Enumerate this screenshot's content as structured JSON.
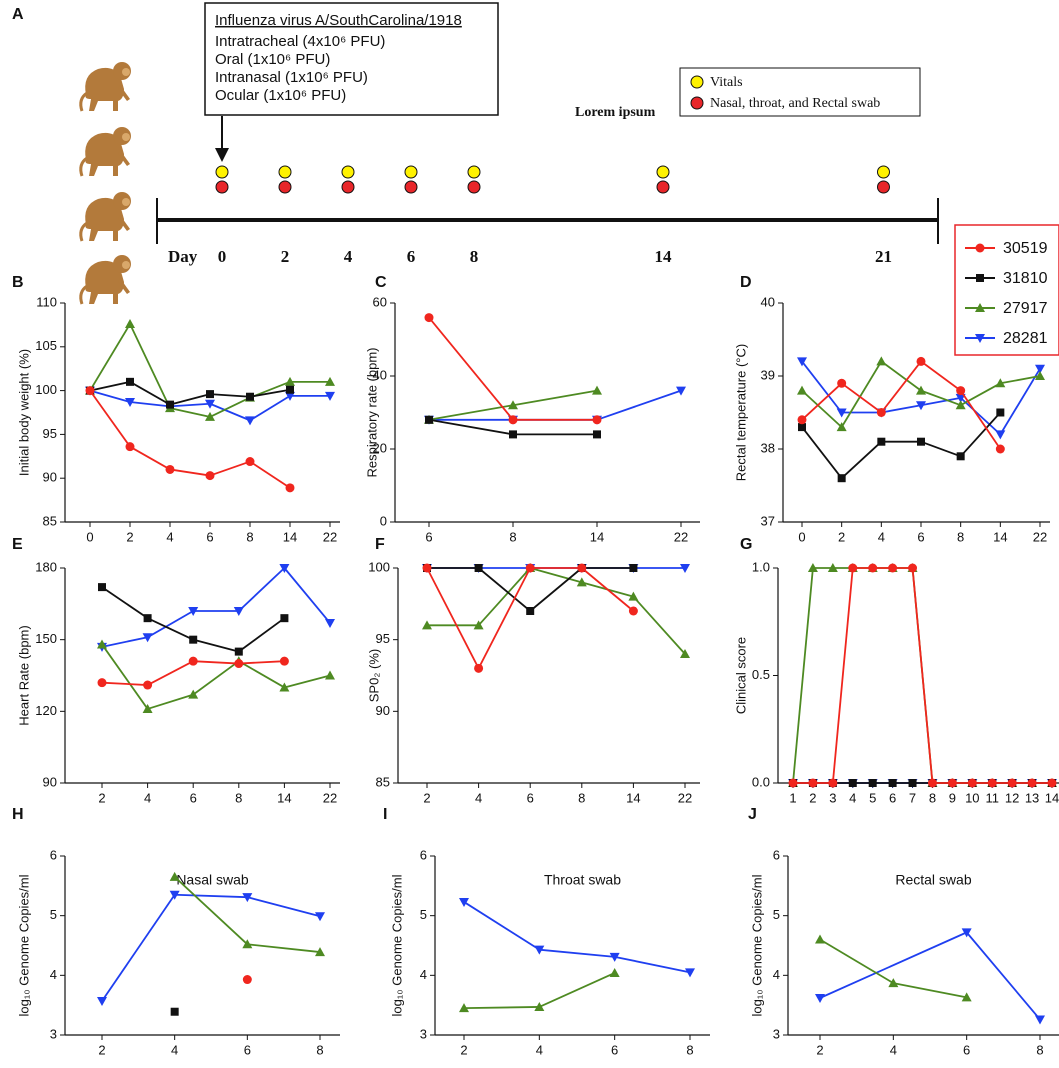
{
  "timeline": {
    "panel_label": "A",
    "box_title": "Influenza virus A/SouthCarolina/1918",
    "box_lines": [
      "Intratracheal (4x10⁶ PFU)",
      "Oral (1x10⁶ PFU)",
      "Intranasal (1x10⁶ PFU)",
      "Ocular (1x10⁶ PFU)"
    ],
    "legend": [
      {
        "label": "Vitals",
        "color": "#fff200"
      },
      {
        "label": "Nasal, throat, and Rectal swab",
        "color": "#e8262a"
      }
    ],
    "note": "Lorem ipsum",
    "day_label": "Day",
    "days": [
      0,
      2,
      4,
      6,
      8,
      14,
      21
    ]
  },
  "chart_data": [
    {
      "type": "line",
      "panel_label": "B",
      "y_label": "Initial body weight (%)",
      "categories": [
        "0",
        "2",
        "4",
        "6",
        "8",
        "14",
        "22"
      ],
      "ylim": [
        85,
        110
      ],
      "yticks": [
        85,
        90,
        95,
        100,
        105,
        110
      ],
      "series": [
        {
          "name": "30519",
          "color": "#f0261e",
          "marker": "circle",
          "values": [
            100,
            93.6,
            91,
            90.3,
            91.9,
            88.9,
            null
          ]
        },
        {
          "name": "31810",
          "color": "#111111",
          "marker": "square",
          "values": [
            100,
            101,
            98.4,
            99.6,
            99.3,
            100.1,
            null
          ]
        },
        {
          "name": "27917",
          "color": "#4e8a22",
          "marker": "triangle-up",
          "values": [
            100,
            107.6,
            98,
            97,
            99.2,
            101,
            101
          ]
        },
        {
          "name": "28281",
          "color": "#1f3ff0",
          "marker": "triangle-down",
          "values": [
            100,
            98.7,
            98.2,
            98.5,
            96.6,
            99.4,
            99.4
          ]
        }
      ]
    },
    {
      "type": "line",
      "panel_label": "C",
      "y_label": "Respiratory rate (bpm)",
      "categories": [
        "6",
        "8",
        "14",
        "22"
      ],
      "ylim": [
        0,
        60
      ],
      "yticks": [
        0,
        20,
        40,
        60
      ],
      "series": [
        {
          "name": "30519",
          "color": "#f0261e",
          "marker": "circle",
          "values": [
            56,
            28,
            28,
            null
          ]
        },
        {
          "name": "31810",
          "color": "#111111",
          "marker": "square",
          "values": [
            28,
            24,
            24,
            null
          ]
        },
        {
          "name": "27917",
          "color": "#4e8a22",
          "marker": "triangle-up",
          "values": [
            28,
            32,
            36,
            null
          ]
        },
        {
          "name": "28281",
          "color": "#1f3ff0",
          "marker": "triangle-down",
          "values": [
            28,
            28,
            28,
            36
          ]
        }
      ]
    },
    {
      "type": "line",
      "panel_label": "D",
      "y_label": "Rectal temperature (°C)",
      "categories": [
        "0",
        "2",
        "4",
        "6",
        "8",
        "14",
        "22"
      ],
      "ylim": [
        37,
        40
      ],
      "yticks": [
        37,
        38,
        39,
        40
      ],
      "series": [
        {
          "name": "30519",
          "color": "#f0261e",
          "marker": "circle",
          "values": [
            38.4,
            38.9,
            38.5,
            39.2,
            38.8,
            38.0,
            null
          ]
        },
        {
          "name": "31810",
          "color": "#111111",
          "marker": "square",
          "values": [
            38.3,
            37.6,
            38.1,
            38.1,
            37.9,
            38.5,
            null
          ]
        },
        {
          "name": "27917",
          "color": "#4e8a22",
          "marker": "triangle-up",
          "values": [
            38.8,
            38.3,
            39.2,
            38.8,
            38.6,
            38.9,
            39.0
          ]
        },
        {
          "name": "28281",
          "color": "#1f3ff0",
          "marker": "triangle-down",
          "values": [
            39.2,
            38.5,
            38.5,
            38.6,
            38.7,
            38.2,
            39.1
          ]
        }
      ]
    },
    {
      "type": "line",
      "panel_label": "E",
      "y_label": "Heart Rate (bpm)",
      "categories": [
        "2",
        "4",
        "6",
        "8",
        "14",
        "22"
      ],
      "ylim": [
        90,
        180
      ],
      "yticks": [
        90,
        120,
        150,
        180
      ],
      "series": [
        {
          "name": "30519",
          "color": "#f0261e",
          "marker": "circle",
          "values": [
            132,
            131,
            141,
            140,
            141,
            null
          ]
        },
        {
          "name": "31810",
          "color": "#111111",
          "marker": "square",
          "values": [
            172,
            159,
            150,
            145,
            159,
            null
          ]
        },
        {
          "name": "27917",
          "color": "#4e8a22",
          "marker": "triangle-up",
          "values": [
            148,
            121,
            127,
            141,
            130,
            135
          ]
        },
        {
          "name": "28281",
          "color": "#1f3ff0",
          "marker": "triangle-down",
          "values": [
            147,
            151,
            162,
            162,
            180,
            157
          ]
        }
      ]
    },
    {
      "type": "line",
      "panel_label": "F",
      "y_label": "SP0₂ (%)",
      "categories": [
        "2",
        "4",
        "6",
        "8",
        "14",
        "22"
      ],
      "ylim": [
        85,
        100
      ],
      "yticks": [
        85,
        90,
        95,
        100
      ],
      "series": [
        {
          "name": "30519",
          "color": "#f0261e",
          "marker": "circle",
          "values": [
            100,
            93,
            100,
            100,
            97,
            null
          ]
        },
        {
          "name": "31810",
          "color": "#111111",
          "marker": "square",
          "values": [
            100,
            100,
            97,
            100,
            100,
            null
          ]
        },
        {
          "name": "27917",
          "color": "#4e8a22",
          "marker": "triangle-up",
          "values": [
            96,
            96,
            100,
            99,
            98,
            94
          ]
        },
        {
          "name": "28281",
          "color": "#1f3ff0",
          "marker": "triangle-down",
          "values": [
            100,
            100,
            100,
            100,
            100,
            100
          ]
        }
      ]
    },
    {
      "type": "line",
      "panel_label": "G",
      "y_label": "Clinical score",
      "categories": [
        "1",
        "2",
        "3",
        "4",
        "5",
        "6",
        "7",
        "8",
        "9",
        "10",
        "11",
        "12",
        "13",
        "14"
      ],
      "ylim": [
        0,
        1
      ],
      "yticks": [
        {
          "value": 0,
          "label": "0.0"
        },
        {
          "value": 0.5,
          "label": "0.5"
        },
        {
          "value": 1,
          "label": "1.0"
        }
      ],
      "series": [
        {
          "name": "30519",
          "color": "#f0261e",
          "marker": "circle",
          "values": [
            0,
            0,
            0,
            1,
            1,
            1,
            1,
            0,
            0,
            0,
            0,
            0,
            0,
            0
          ]
        },
        {
          "name": "31810",
          "color": "#111111",
          "marker": "square",
          "values": [
            0,
            0,
            0,
            0,
            0,
            0,
            0,
            0,
            0,
            0,
            0,
            0,
            0,
            0
          ]
        },
        {
          "name": "27917",
          "color": "#4e8a22",
          "marker": "triangle-up",
          "values": [
            0,
            1,
            1,
            1,
            1,
            1,
            1,
            0,
            0,
            0,
            0,
            0,
            0,
            0
          ]
        },
        {
          "name": "28281",
          "color": "#1f3ff0",
          "marker": "triangle-down",
          "values": [
            0,
            0,
            0,
            0,
            0,
            0,
            0,
            0,
            0,
            0,
            0,
            0,
            0,
            0
          ]
        }
      ]
    },
    {
      "type": "line",
      "panel_label": "H",
      "y_label": "log₁₀ Genome Copies/ml",
      "annotation": "Nasal swab",
      "categories": [
        "2",
        "4",
        "6",
        "8"
      ],
      "ylim": [
        3,
        6
      ],
      "yticks": [
        3,
        4,
        5,
        6
      ],
      "series": [
        {
          "name": "30519",
          "color": "#f0261e",
          "marker": "circle",
          "values": [
            null,
            null,
            3.93,
            null
          ]
        },
        {
          "name": "31810",
          "color": "#111111",
          "marker": "square",
          "values": [
            null,
            3.39,
            null,
            null
          ]
        },
        {
          "name": "27917",
          "color": "#4e8a22",
          "marker": "triangle-up",
          "values": [
            null,
            5.65,
            4.52,
            4.39
          ]
        },
        {
          "name": "28281",
          "color": "#1f3ff0",
          "marker": "triangle-down",
          "values": [
            3.57,
            5.35,
            5.31,
            4.99
          ]
        }
      ]
    },
    {
      "type": "line",
      "panel_label": "I",
      "y_label": "log₁₀ Genome Copies/ml",
      "annotation": "Throat swab",
      "categories": [
        "2",
        "4",
        "6",
        "8"
      ],
      "ylim": [
        3,
        6
      ],
      "yticks": [
        3,
        4,
        5,
        6
      ],
      "series": [
        {
          "name": "27917",
          "color": "#4e8a22",
          "marker": "triangle-up",
          "values": [
            3.45,
            3.47,
            4.04,
            null
          ]
        },
        {
          "name": "28281",
          "color": "#1f3ff0",
          "marker": "triangle-down",
          "values": [
            5.23,
            4.43,
            4.31,
            4.05
          ]
        }
      ]
    },
    {
      "type": "line",
      "panel_label": "J",
      "y_label": "log₁₀ Genome Copies/ml",
      "annotation": "Rectal swab",
      "categories": [
        "2",
        "4",
        "6",
        "8"
      ],
      "ylim": [
        3,
        6
      ],
      "yticks": [
        3,
        4,
        5,
        6
      ],
      "series": [
        {
          "name": "27917",
          "color": "#4e8a22",
          "marker": "triangle-up",
          "values": [
            4.6,
            3.87,
            3.63,
            null
          ]
        },
        {
          "name": "28281",
          "color": "#1f3ff0",
          "marker": "triangle-down",
          "values": [
            3.62,
            null,
            4.72,
            3.26
          ]
        }
      ]
    }
  ]
}
